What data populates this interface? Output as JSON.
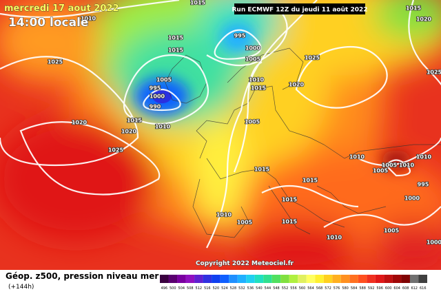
{
  "header": {
    "date": "mercredi 17 aout 2022",
    "time": "14:00 locale",
    "run": "Run ECMWF 12Z du jeudi 11 août 2022"
  },
  "copyright": "Copyright 2022 Meteociel.fr",
  "footer": {
    "title": "Géop. z500, pression niveau mer",
    "lead": "(+144h)"
  },
  "isobar_labels": [
    1015,
    1010,
    1015,
    1015,
    995,
    1000,
    1005,
    1025,
    1025,
    1005,
    995,
    1000,
    990,
    1010,
    1015,
    1020,
    1015,
    1020,
    1020,
    1010,
    1005,
    1025,
    1010,
    1005,
    1015,
    1005,
    1010,
    1010,
    995,
    1015,
    1015,
    1000,
    1010,
    1005,
    1015,
    1010,
    1005,
    1000,
    1020,
    1025,
    1015
  ],
  "legend": {
    "levels": [
      496,
      500,
      504,
      508,
      512,
      516,
      520,
      524,
      528,
      532,
      536,
      540,
      544,
      548,
      552,
      556,
      560,
      564,
      568,
      572,
      576,
      580,
      584,
      588,
      592,
      596,
      600,
      604,
      608,
      612,
      616
    ],
    "colors": [
      "#3a0040",
      "#5a0070",
      "#7a00a0",
      "#9010c0",
      "#6020d0",
      "#3030e0",
      "#1040f0",
      "#1060ff",
      "#2090ff",
      "#20b0ff",
      "#20d0f0",
      "#20e0c0",
      "#30e090",
      "#50e060",
      "#80e040",
      "#b0f040",
      "#e0f060",
      "#ffff60",
      "#fff030",
      "#ffd020",
      "#ffb020",
      "#ff9020",
      "#ff7020",
      "#ff5020",
      "#f03020",
      "#e01818",
      "#c01010",
      "#a00808",
      "#800404",
      "#707070",
      "#404040"
    ]
  }
}
